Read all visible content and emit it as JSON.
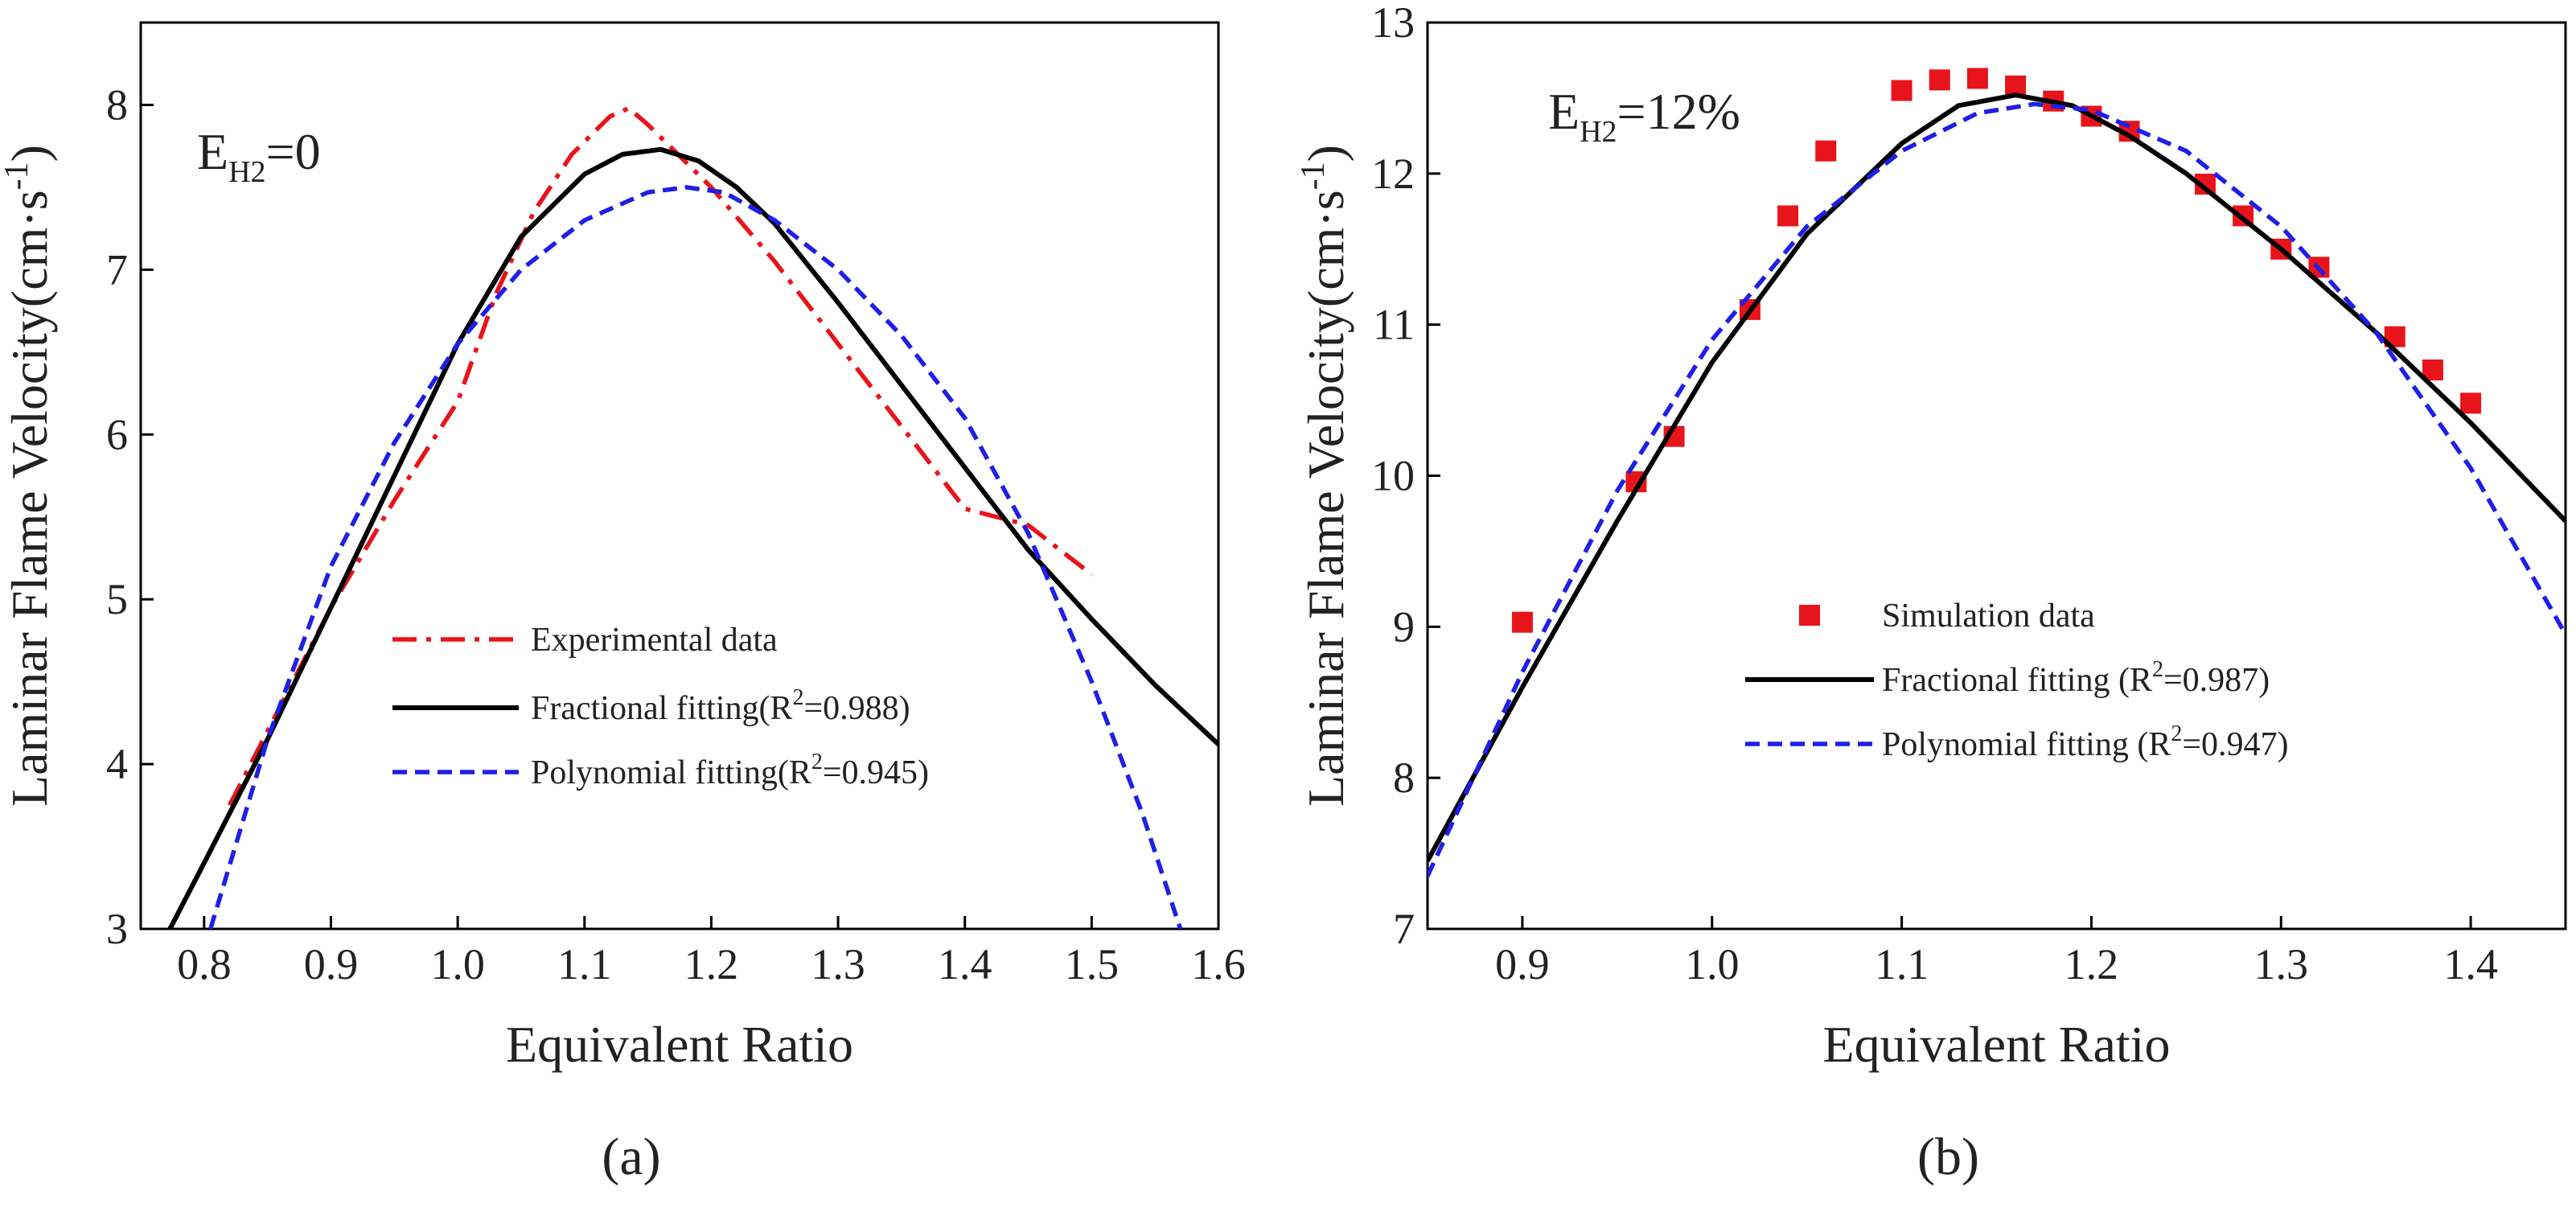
{
  "chart_data": [
    {
      "type": "line",
      "panel_label": "(a)",
      "annotation": {
        "main": "E",
        "sub": "H2",
        "value": "=0"
      },
      "xlabel": "Equivalent Ratio",
      "ylabel": "Laminar Flame Velocity(cm·s-1)",
      "ylabel_parts": {
        "text": "Laminar Flame Velocity(cm·s",
        "sup": "-1",
        "close": ")"
      },
      "xlim": [
        0.75,
        1.6
      ],
      "ylim": [
        3,
        8.5
      ],
      "xticks": [
        0.8,
        0.9,
        1.0,
        1.1,
        1.2,
        1.3,
        1.4,
        1.5,
        1.6
      ],
      "xtick_labels": [
        "0.8",
        "0.9",
        "1.0",
        "1.1",
        "1.2",
        "1.3",
        "1.4",
        "1.5",
        "1.6"
      ],
      "yticks": [
        3,
        4,
        5,
        6,
        7,
        8
      ],
      "ytick_labels": [
        "3",
        "4",
        "5",
        "6",
        "7",
        "8"
      ],
      "legend_position": "center-left",
      "series": [
        {
          "name": "Experimental data",
          "legend_text": "Experimental data",
          "style": "dash-dot",
          "color": "#e8141b",
          "x": [
            0.82,
            0.86,
            0.9,
            0.95,
            1.0,
            1.03,
            1.06,
            1.09,
            1.12,
            1.135,
            1.15,
            1.2,
            1.25,
            1.3,
            1.35,
            1.4,
            1.45,
            1.5
          ],
          "y": [
            3.75,
            4.35,
            4.95,
            5.6,
            6.2,
            6.85,
            7.35,
            7.7,
            7.93,
            7.98,
            7.88,
            7.5,
            7.05,
            6.55,
            6.05,
            5.55,
            5.45,
            5.15
          ]
        },
        {
          "name": "Fractional fitting",
          "legend_text": "Fractional fitting(R",
          "legend_sup": "2",
          "legend_tail": "=0.988)",
          "style": "solid",
          "color": "#000000",
          "x": [
            0.773,
            0.8,
            0.85,
            0.9,
            0.95,
            1.0,
            1.05,
            1.1,
            1.13,
            1.16,
            1.19,
            1.22,
            1.25,
            1.3,
            1.35,
            1.4,
            1.45,
            1.5,
            1.55,
            1.6
          ],
          "y": [
            3.0,
            3.4,
            4.15,
            4.95,
            5.75,
            6.55,
            7.2,
            7.58,
            7.7,
            7.73,
            7.66,
            7.5,
            7.28,
            6.8,
            6.3,
            5.8,
            5.3,
            4.88,
            4.48,
            4.12
          ]
        },
        {
          "name": "Polynomial fitting",
          "legend_text": "Polynomial fitting(R",
          "legend_sup": "2",
          "legend_tail": "=0.945)",
          "style": "dashed",
          "color": "#1f1fe6",
          "x": [
            0.805,
            0.85,
            0.9,
            0.95,
            1.0,
            1.05,
            1.1,
            1.15,
            1.18,
            1.21,
            1.25,
            1.3,
            1.35,
            1.4,
            1.45,
            1.5,
            1.54,
            1.57
          ],
          "y": [
            3.0,
            4.15,
            5.2,
            5.95,
            6.55,
            7.0,
            7.3,
            7.47,
            7.5,
            7.47,
            7.3,
            7.0,
            6.6,
            6.1,
            5.4,
            4.5,
            3.7,
            3.0
          ]
        }
      ]
    },
    {
      "type": "line",
      "panel_label": "(b)",
      "annotation": {
        "main": "E",
        "sub": "H2",
        "value": "=12%"
      },
      "xlabel": "Equivalent Ratio",
      "ylabel": "Laminar Flame Velocity(cm·s-1)",
      "ylabel_parts": {
        "text": "Laminar Flame Velocity(cm·s",
        "sup": "-1",
        "close": ")"
      },
      "xlim": [
        0.85,
        1.45
      ],
      "ylim": [
        7,
        13
      ],
      "xticks": [
        0.9,
        1.0,
        1.1,
        1.2,
        1.3,
        1.4
      ],
      "xtick_labels": [
        "0.9",
        "1.0",
        "1.1",
        "1.2",
        "1.3",
        "1.4"
      ],
      "yticks": [
        7,
        8,
        9,
        10,
        11,
        12,
        13
      ],
      "ytick_labels": [
        "7",
        "8",
        "9",
        "10",
        "11",
        "12",
        "13"
      ],
      "legend_position": "center",
      "series": [
        {
          "name": "Simulation data",
          "legend_text": "Simulation data",
          "style": "markers",
          "color": "#e8141b",
          "x": [
            0.9,
            0.96,
            0.98,
            1.02,
            1.04,
            1.06,
            1.1,
            1.12,
            1.14,
            1.16,
            1.18,
            1.2,
            1.22,
            1.26,
            1.28,
            1.3,
            1.32,
            1.36,
            1.38,
            1.4
          ],
          "y": [
            9.03,
            9.96,
            10.26,
            11.1,
            11.72,
            12.15,
            12.55,
            12.62,
            12.63,
            12.58,
            12.48,
            12.38,
            12.28,
            11.93,
            11.72,
            11.5,
            11.38,
            10.92,
            10.7,
            10.48
          ]
        },
        {
          "name": "Fractional fitting",
          "legend_text": "Fractional fitting (R",
          "legend_sup": "2",
          "legend_tail": "=0.987)",
          "style": "solid",
          "color": "#000000",
          "x": [
            0.85,
            0.9,
            0.95,
            1.0,
            1.05,
            1.1,
            1.13,
            1.16,
            1.19,
            1.22,
            1.25,
            1.3,
            1.35,
            1.4,
            1.45
          ],
          "y": [
            7.45,
            8.6,
            9.7,
            10.75,
            11.6,
            12.2,
            12.45,
            12.52,
            12.45,
            12.25,
            12.0,
            11.5,
            10.95,
            10.35,
            9.7
          ]
        },
        {
          "name": "Polynomial fitting",
          "legend_text": "Polynomial fitting (R",
          "legend_sup": "2",
          "legend_tail": "=0.947)",
          "style": "dashed",
          "color": "#1f1fe6",
          "x": [
            0.85,
            0.9,
            0.95,
            1.0,
            1.05,
            1.1,
            1.14,
            1.17,
            1.2,
            1.25,
            1.3,
            1.35,
            1.4,
            1.45
          ],
          "y": [
            7.35,
            8.7,
            9.9,
            10.9,
            11.65,
            12.15,
            12.4,
            12.46,
            12.42,
            12.15,
            11.65,
            10.95,
            10.05,
            8.95
          ]
        }
      ]
    }
  ]
}
